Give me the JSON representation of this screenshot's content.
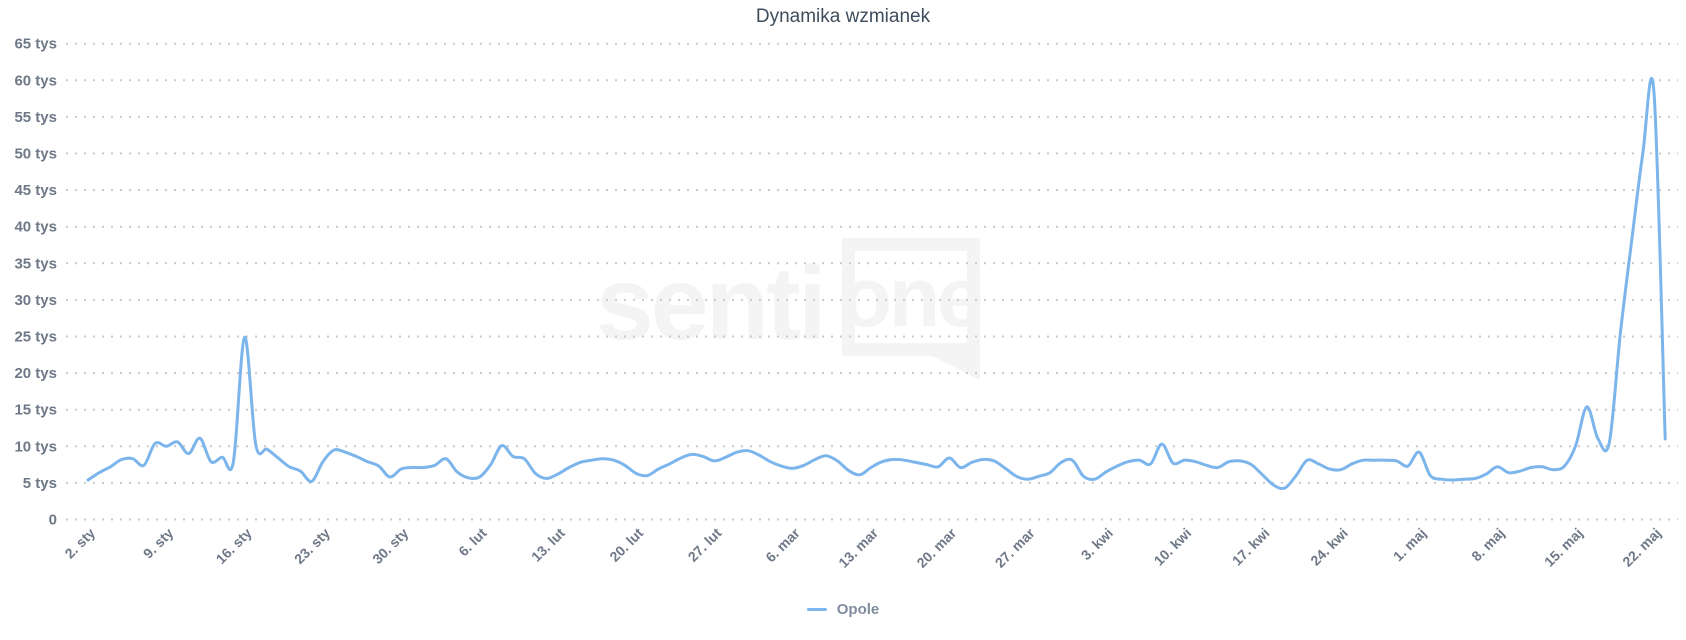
{
  "colors": {
    "series_line": "#7cb5ec",
    "axis_text": "#6e7887",
    "title_text": "#3e4d5c",
    "grid_dots": "#c9c9c9",
    "legend_text": "#808c9e",
    "watermark": "#f4f4f4"
  },
  "watermark": {
    "part1": "senti",
    "part2": "one"
  },
  "legend": {
    "items": [
      {
        "label": "Opole",
        "color": "#7cb5ec"
      }
    ]
  },
  "chart_data": {
    "type": "line",
    "title": "Dynamika wzmianek",
    "xlabel": "",
    "ylabel": "",
    "y_unit": "tys",
    "ylim": [
      0,
      65
    ],
    "grid": "dotted horizontal lines at every 5 tys",
    "legend_position": "bottom center",
    "y_ticks": [
      0,
      5,
      10,
      15,
      20,
      25,
      30,
      35,
      40,
      45,
      50,
      55,
      60,
      65
    ],
    "y_tick_labels": [
      "0",
      "5 tys",
      "10 tys",
      "15 tys",
      "20 tys",
      "25 tys",
      "30 tys",
      "35 tys",
      "40 tys",
      "45 tys",
      "50 tys",
      "55 tys",
      "60 tys",
      "65 tys"
    ],
    "x_tick_labels": [
      "2. sty",
      "9. sty",
      "16. sty",
      "23. sty",
      "30. sty",
      "6. lut",
      "13. lut",
      "20. lut",
      "27. lut",
      "6. mar",
      "13. mar",
      "20. mar",
      "27. mar",
      "3. kwi",
      "10. kwi",
      "17. kwi",
      "24. kwi",
      "1. maj",
      "8. maj",
      "15. maj",
      "22. maj"
    ],
    "x_tick_interval_days": 7,
    "x_resolution": "daily",
    "values_start_label": "2. sty",
    "values_unit": "tys",
    "series": [
      {
        "name": "Opole",
        "color": "#7cb5ec",
        "values": [
          5.4,
          6.4,
          7.2,
          8.2,
          8.3,
          7.4,
          10.4,
          10.0,
          10.6,
          9.0,
          11.1,
          7.9,
          8.5,
          7.9,
          24.9,
          10.2,
          9.6,
          8.4,
          7.2,
          6.6,
          5.2,
          7.9,
          9.5,
          9.2,
          8.6,
          7.9,
          7.3,
          5.8,
          6.9,
          7.1,
          7.1,
          7.4,
          8.3,
          6.5,
          5.7,
          5.8,
          7.5,
          10.1,
          8.6,
          8.3,
          6.3,
          5.6,
          6.2,
          7.1,
          7.8,
          8.1,
          8.3,
          8.1,
          7.4,
          6.3,
          6.0,
          6.9,
          7.6,
          8.4,
          8.9,
          8.6,
          8.0,
          8.5,
          9.2,
          9.4,
          8.8,
          7.9,
          7.3,
          7.0,
          7.4,
          8.2,
          8.7,
          8.0,
          6.7,
          6.1,
          7.1,
          7.9,
          8.2,
          8.1,
          7.8,
          7.5,
          7.2,
          8.4,
          7.1,
          7.8,
          8.2,
          8.0,
          7.0,
          5.9,
          5.5,
          5.9,
          6.4,
          7.8,
          8.1,
          5.9,
          5.5,
          6.5,
          7.3,
          7.9,
          8.1,
          7.6,
          10.3,
          7.7,
          8.1,
          7.9,
          7.4,
          7.1,
          7.9,
          8.0,
          7.5,
          6.1,
          4.7,
          4.3,
          6.0,
          8.1,
          7.6,
          6.9,
          6.8,
          7.6,
          8.1,
          8.1,
          8.1,
          8.0,
          7.3,
          9.2,
          6.0,
          5.5,
          5.4,
          5.5,
          5.6,
          6.2,
          7.2,
          6.4,
          6.6,
          7.1,
          7.2,
          6.8,
          7.3,
          10.1,
          15.4,
          11.0,
          10.5,
          25.5,
          38.0,
          50.0,
          58.3,
          11.0
        ]
      }
    ]
  }
}
